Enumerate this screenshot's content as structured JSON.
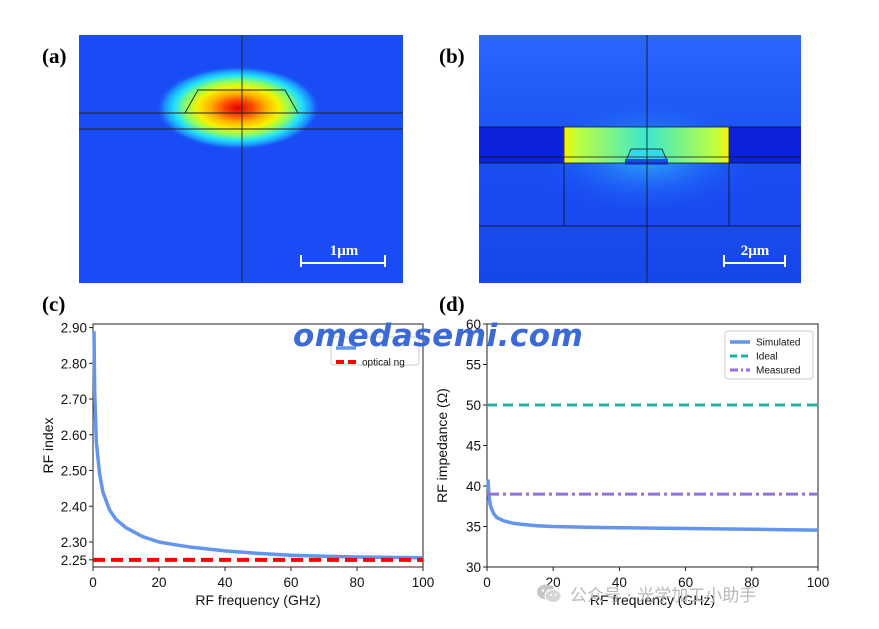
{
  "panels": {
    "a": {
      "label": "(a)",
      "scale_bar": "1μm"
    },
    "b": {
      "label": "(b)",
      "scale_bar": "2μm"
    },
    "c": {
      "label": "(c)"
    },
    "d": {
      "label": "(d)"
    }
  },
  "watermark": "omedasemi.com",
  "wechat_caption": "公众号 · 光学加工小助手",
  "colors": {
    "field_blue": "#1a4cf5",
    "simulated": "#6495ed",
    "optical_ng": "#ff0000",
    "ideal": "#20b2aa",
    "measured": "#9370db",
    "watermark": "#3b69d6"
  },
  "chart_data": [
    {
      "type": "line",
      "panel": "(c)",
      "xlabel": "RF frequency (GHz)",
      "ylabel": "RF index",
      "xlim": [
        0,
        100
      ],
      "ylim": [
        2.23,
        2.91
      ],
      "xticks": [
        "0",
        "20",
        "40",
        "60",
        "80",
        "100"
      ],
      "yticks": [
        "2.25",
        "2.30",
        "2.40",
        "2.50",
        "2.60",
        "2.70",
        "2.80",
        "2.90"
      ],
      "legend_position": "top-right",
      "series": [
        {
          "name": "",
          "x": [
            0.3,
            0.5,
            1,
            2,
            3,
            5,
            7,
            10,
            15,
            20,
            25,
            30,
            40,
            50,
            60,
            70,
            80,
            90,
            100
          ],
          "values": [
            2.89,
            2.72,
            2.58,
            2.49,
            2.44,
            2.39,
            2.363,
            2.34,
            2.315,
            2.3,
            2.292,
            2.285,
            2.275,
            2.268,
            2.263,
            2.26,
            2.258,
            2.257,
            2.256
          ]
        },
        {
          "name": "optical ng",
          "x": [
            0,
            100
          ],
          "values": [
            2.25,
            2.25
          ]
        }
      ]
    },
    {
      "type": "line",
      "panel": "(d)",
      "xlabel": "RF frequency (GHz)",
      "ylabel": "RF impedance (Ω)",
      "xlim": [
        0,
        100
      ],
      "ylim": [
        30,
        60
      ],
      "xticks": [
        "0",
        "20",
        "40",
        "60",
        "80",
        "100"
      ],
      "yticks": [
        "30",
        "35",
        "40",
        "45",
        "50",
        "55",
        "60"
      ],
      "legend_position": "top-right",
      "series": [
        {
          "name": "Simulated",
          "x": [
            0.3,
            0.6,
            1,
            2,
            3,
            5,
            8,
            10,
            15,
            20,
            30,
            40,
            50,
            60,
            70,
            80,
            90,
            100
          ],
          "values": [
            40.8,
            38.7,
            37.6,
            36.6,
            36.1,
            35.7,
            35.4,
            35.3,
            35.1,
            35.0,
            34.9,
            34.85,
            34.8,
            34.75,
            34.7,
            34.65,
            34.6,
            34.55
          ]
        },
        {
          "name": "Ideal",
          "x": [
            0,
            100
          ],
          "values": [
            50,
            50
          ]
        },
        {
          "name": "Measured",
          "x": [
            0,
            100
          ],
          "values": [
            39,
            39
          ]
        }
      ]
    }
  ]
}
